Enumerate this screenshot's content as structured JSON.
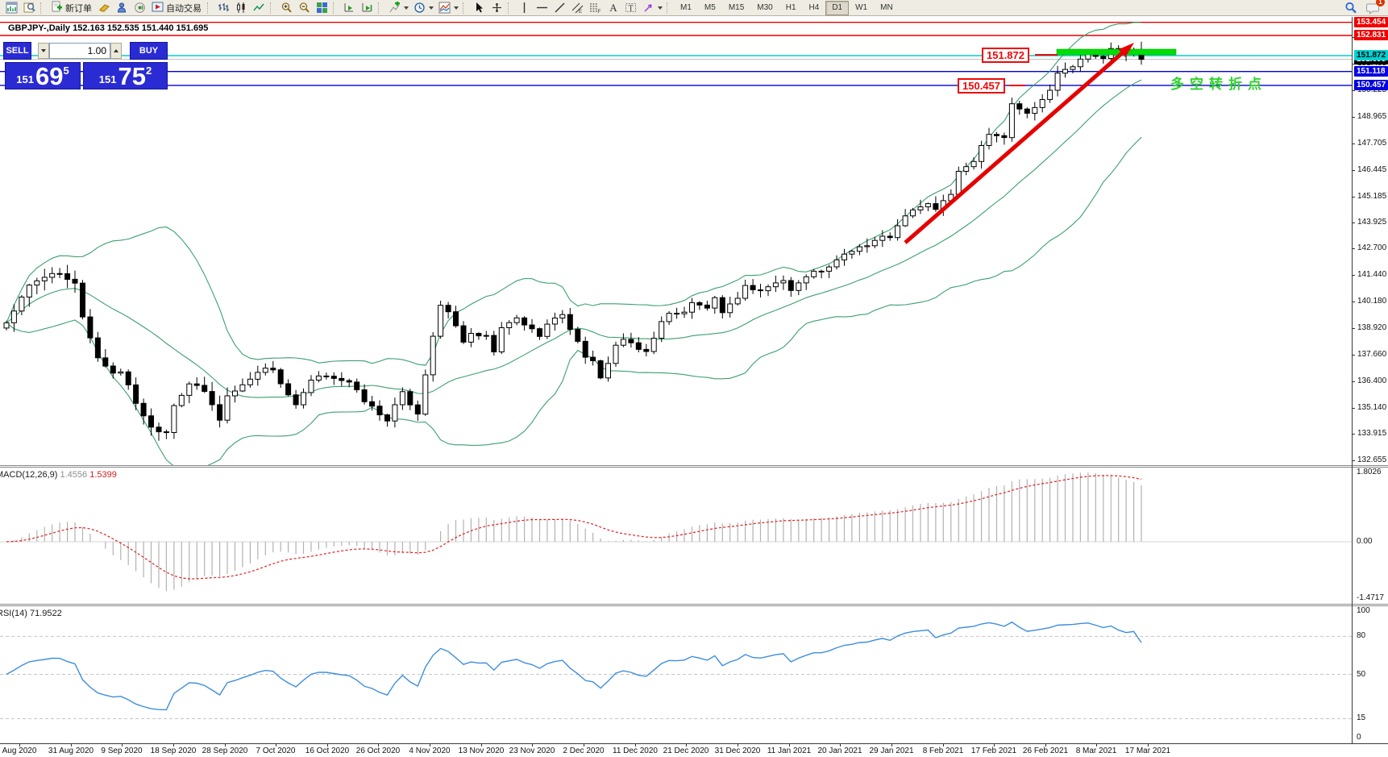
{
  "toolbar": {
    "new_order_label": "新订单",
    "autotrade_label": "自动交易",
    "timeframes": [
      "M1",
      "M5",
      "M15",
      "M30",
      "H1",
      "H4",
      "D1",
      "W1",
      "MN"
    ],
    "active_timeframe": "D1",
    "notification_count": "1",
    "icons": [
      "chart-window-icon",
      "profiles-icon",
      "new-order-icon",
      "styles-icon",
      "messenger-icon",
      "sound-icon",
      "autotrade-icon",
      "bar-chart-icon",
      "candlestick-icon",
      "line-chart-icon",
      "zoom-in-icon",
      "zoom-out-icon",
      "tile-windows-icon",
      "auto-scroll-icon",
      "chart-shift-icon",
      "indicators-icon",
      "periods-icon",
      "templates-icon",
      "cursor-icon",
      "crosshair-icon",
      "vertical-line-icon",
      "horizontal-line-icon",
      "trendline-icon",
      "channel-icon",
      "fibonacci-icon",
      "text-icon",
      "text-label-icon",
      "arrow-object-icon",
      "search-icon",
      "notification-icon"
    ]
  },
  "trade_panel": {
    "sell_label": "SELL",
    "buy_label": "BUY",
    "volume": "1.00",
    "bid_prefix": "151",
    "bid_big": "69",
    "bid_sup": "5",
    "ask_prefix": "151",
    "ask_big": "75",
    "ask_sup": "2"
  },
  "chart": {
    "title": "GBPJPY-,Daily  152.163 152.535 151.440 151.695"
  },
  "price_scale": {
    "ticks": [
      "152.745",
      "151.485",
      "150.225",
      "148.965",
      "147.705",
      "146.445",
      "145.185",
      "143.925",
      "142.700",
      "141.440",
      "140.180",
      "138.920",
      "137.660",
      "136.400",
      "135.140",
      "133.915",
      "132.655"
    ],
    "labels": [
      {
        "text": "153.454",
        "bg": "#f20000",
        "fg": "#ffffff",
        "z": 3
      },
      {
        "text": "152.831",
        "bg": "#f20000",
        "fg": "#ffffff",
        "z": 3
      },
      {
        "text": "151.872",
        "bg": "#00d2d2",
        "fg": "#000000",
        "z": 5
      },
      {
        "text": "151.695",
        "bg": "#000000",
        "fg": "#ffffff",
        "z": 4
      },
      {
        "text": "151.118",
        "bg": "#0000e0",
        "fg": "#ffffff",
        "z": 3
      },
      {
        "text": "150.457",
        "bg": "#0000e0",
        "fg": "#ffffff",
        "z": 3
      }
    ]
  },
  "hlines": [
    {
      "price": 153.454,
      "color": "#e60000",
      "w": 1.4
    },
    {
      "price": 152.831,
      "color": "#e60000",
      "w": 1.4
    },
    {
      "price": 151.872,
      "color": "#00cdcd",
      "w": 1.6
    },
    {
      "price": 151.695,
      "color": "#bcbcbc",
      "w": 1.0
    },
    {
      "price": 151.118,
      "color": "#0000d4",
      "w": 1.4
    },
    {
      "price": 150.457,
      "color": "#0000d4",
      "w": 1.4
    }
  ],
  "annotations": {
    "resistance_label": "151.872",
    "support_label": "150.457",
    "note": "多空转折点",
    "note_color": "#2fd22f",
    "green_bar_color": "#00dd00",
    "arrow_color": "#e60000"
  },
  "macd": {
    "name": "MACD(12,26,9)",
    "value_main": "1.4556",
    "value_signal": "1.5399",
    "scale": [
      "1.8026",
      "0.00",
      "-1.4717"
    ]
  },
  "rsi": {
    "name": "RSI(14)",
    "value": "71.9522",
    "scale": [
      "100",
      "80",
      "50",
      "15",
      "0"
    ],
    "levels": [
      80,
      50,
      15
    ]
  },
  "date_axis": {
    "labels": [
      "Aug 2020",
      "31 Aug 2020",
      "9 Sep 2020",
      "18 Sep 2020",
      "28 Sep 2020",
      "7 Oct 2020",
      "16 Oct 2020",
      "26 Oct 2020",
      "4 Nov 2020",
      "13 Nov 2020",
      "23 Nov 2020",
      "2 Dec 2020",
      "11 Dec 2020",
      "21 Dec 2020",
      "31 Dec 2020",
      "11 Jan 2021",
      "20 Jan 2021",
      "29 Jan 2021",
      "8 Feb 2021",
      "17 Feb 2021",
      "26 Feb 2021",
      "8 Mar 2021",
      "17 Mar 2021"
    ]
  },
  "chart_data": {
    "type": "candlestick",
    "symbol": "GBPJPY",
    "period": "Daily",
    "last_ohlc": {
      "open": 152.163,
      "high": 152.535,
      "low": 151.44,
      "close": 151.695
    },
    "bid": 151.695,
    "ask": 151.752,
    "price_range_visible": [
      132.655,
      153.454
    ],
    "indicators": {
      "bollinger": {
        "period": 20,
        "deviation": 2,
        "color": "#3ca06e"
      },
      "macd": {
        "fast": 12,
        "slow": 26,
        "signal": 9,
        "last_main": 1.4556,
        "last_signal": 1.5399,
        "scale_max": 1.8026,
        "scale_min": -1.4717
      },
      "rsi": {
        "period": 14,
        "last": 71.9522,
        "levels": [
          80,
          50,
          15
        ]
      }
    },
    "horizontal_levels": [
      153.454,
      152.831,
      151.872,
      151.118,
      150.457
    ],
    "close_anchors": [
      [
        0,
        139.2
      ],
      [
        3,
        140.9
      ],
      [
        6,
        141.6
      ],
      [
        9,
        141.0
      ],
      [
        10,
        139.5
      ],
      [
        12,
        137.5
      ],
      [
        14,
        136.8
      ],
      [
        15,
        136.9
      ],
      [
        17,
        135.4
      ],
      [
        19,
        134.2
      ],
      [
        21,
        134.0
      ],
      [
        22,
        135.3
      ],
      [
        24,
        136.3
      ],
      [
        26,
        135.9
      ],
      [
        28,
        134.6
      ],
      [
        29,
        135.7
      ],
      [
        31,
        136.2
      ],
      [
        33,
        136.9
      ],
      [
        35,
        137.0
      ],
      [
        36,
        136.3
      ],
      [
        38,
        135.2
      ],
      [
        40,
        136.4
      ],
      [
        42,
        136.7
      ],
      [
        43,
        136.6
      ],
      [
        45,
        136.3
      ],
      [
        47,
        135.5
      ],
      [
        49,
        134.8
      ],
      [
        50,
        134.6
      ],
      [
        52,
        135.8
      ],
      [
        54,
        134.9
      ],
      [
        56,
        138.6
      ],
      [
        57,
        139.9
      ],
      [
        58,
        139.7
      ],
      [
        60,
        138.3
      ],
      [
        61,
        138.6
      ],
      [
        63,
        138.5
      ],
      [
        64,
        137.8
      ],
      [
        65,
        138.9
      ],
      [
        67,
        139.4
      ],
      [
        68,
        139.1
      ],
      [
        70,
        138.6
      ],
      [
        71,
        139.1
      ],
      [
        73,
        139.6
      ],
      [
        74,
        138.9
      ],
      [
        76,
        137.6
      ],
      [
        77,
        137.3
      ],
      [
        78,
        136.5
      ],
      [
        80,
        138.1
      ],
      [
        81,
        138.4
      ],
      [
        83,
        137.9
      ],
      [
        84,
        137.8
      ],
      [
        86,
        139.2
      ],
      [
        87,
        139.6
      ],
      [
        89,
        139.7
      ],
      [
        90,
        140.1
      ],
      [
        92,
        139.9
      ],
      [
        93,
        140.3
      ],
      [
        94,
        139.6
      ],
      [
        96,
        140.4
      ],
      [
        97,
        140.9
      ],
      [
        99,
        140.7
      ],
      [
        100,
        140.9
      ],
      [
        102,
        141.2
      ],
      [
        103,
        140.7
      ],
      [
        105,
        141.4
      ],
      [
        106,
        141.7
      ],
      [
        107,
        141.6
      ],
      [
        109,
        142.1
      ],
      [
        110,
        142.4
      ],
      [
        112,
        142.8
      ],
      [
        113,
        142.9
      ],
      [
        115,
        143.3
      ],
      [
        116,
        143.2
      ],
      [
        118,
        144.3
      ],
      [
        119,
        144.5
      ],
      [
        121,
        144.8
      ],
      [
        122,
        144.6
      ],
      [
        124,
        145.3
      ],
      [
        125,
        146.3
      ],
      [
        127,
        146.9
      ],
      [
        128,
        147.6
      ],
      [
        129,
        148.2
      ],
      [
        131,
        148.0
      ],
      [
        132,
        149.6
      ],
      [
        134,
        149.1
      ],
      [
        135,
        149.4
      ],
      [
        137,
        150.2
      ],
      [
        138,
        151.1
      ],
      [
        140,
        151.4
      ],
      [
        141,
        151.7
      ],
      [
        142,
        152.0
      ],
      [
        144,
        151.7
      ],
      [
        145,
        152.2
      ],
      [
        147,
        151.9
      ],
      [
        148,
        152.163
      ],
      [
        149,
        151.695
      ]
    ]
  }
}
